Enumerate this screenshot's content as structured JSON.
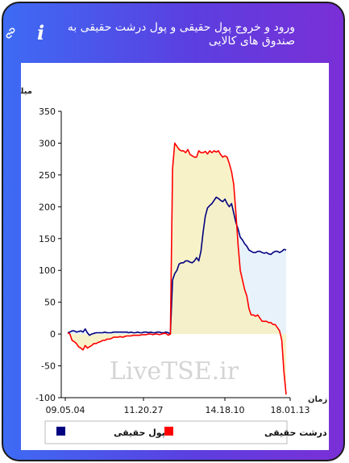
{
  "header": {
    "title": "ورود و خروج پول حقیقی و پول درشت حقیقی به صندوق های کالایی",
    "link_icon": "link-icon",
    "info_icon": "info-icon",
    "info_glyph": "i"
  },
  "watermark": "LiveTSE.ir",
  "chart_data": {
    "type": "line",
    "ylabel": "میلیارد تومان",
    "xlabel": "زمان",
    "ylim": [
      -100,
      350
    ],
    "yticks": [
      -100,
      -50,
      0,
      50,
      100,
      150,
      200,
      250,
      300,
      350
    ],
    "xticks": [
      "09.05.04",
      "11.20.27",
      "14.18.10",
      "18.01.13"
    ],
    "grid": false,
    "legend_position": "bottom",
    "series": [
      {
        "name": "پول حقیقی",
        "color": "#000080",
        "fill": "#e8f2fb",
        "values": [
          2,
          3,
          5,
          5,
          3,
          4,
          5,
          3,
          8,
          2,
          -2,
          0,
          1,
          2,
          2,
          2,
          2,
          3,
          2,
          2,
          2,
          3,
          3,
          3,
          3,
          3,
          3,
          3,
          2,
          3,
          2,
          2,
          3,
          2,
          2,
          3,
          3,
          2,
          3,
          2,
          2,
          3,
          3,
          2,
          2,
          3,
          2,
          0,
          85,
          95,
          100,
          110,
          112,
          112,
          115,
          115,
          113,
          112,
          115,
          120,
          115,
          130,
          160,
          185,
          198,
          202,
          205,
          210,
          215,
          213,
          210,
          208,
          212,
          205,
          200,
          205,
          190,
          175,
          165,
          152,
          148,
          142,
          138,
          132,
          130,
          128,
          128,
          130,
          130,
          128,
          127,
          128,
          126,
          125,
          128,
          130,
          130,
          128,
          130,
          133,
          132
        ]
      },
      {
        "name": "پول درشت حقیقی",
        "color": "#ff0000",
        "fill": "#f7f0bf",
        "values": [
          2,
          0,
          -10,
          -12,
          -15,
          -20,
          -22,
          -25,
          -18,
          -22,
          -20,
          -18,
          -15,
          -15,
          -13,
          -12,
          -10,
          -10,
          -8,
          -8,
          -7,
          -5,
          -5,
          -5,
          -4,
          -5,
          -4,
          -3,
          -3,
          -3,
          -2,
          -2,
          -2,
          -2,
          -1,
          -1,
          -1,
          0,
          0,
          -1,
          0,
          0,
          -1,
          0,
          1,
          1,
          -2,
          0,
          260,
          300,
          295,
          290,
          288,
          288,
          285,
          290,
          282,
          280,
          278,
          278,
          288,
          285,
          285,
          287,
          283,
          288,
          285,
          288,
          286,
          288,
          282,
          278,
          280,
          278,
          268,
          255,
          235,
          190,
          140,
          100,
          85,
          70,
          60,
          40,
          30,
          30,
          28,
          30,
          25,
          20,
          20,
          20,
          18,
          18,
          15,
          15,
          10,
          5,
          -10,
          -60,
          -95
        ]
      }
    ]
  }
}
